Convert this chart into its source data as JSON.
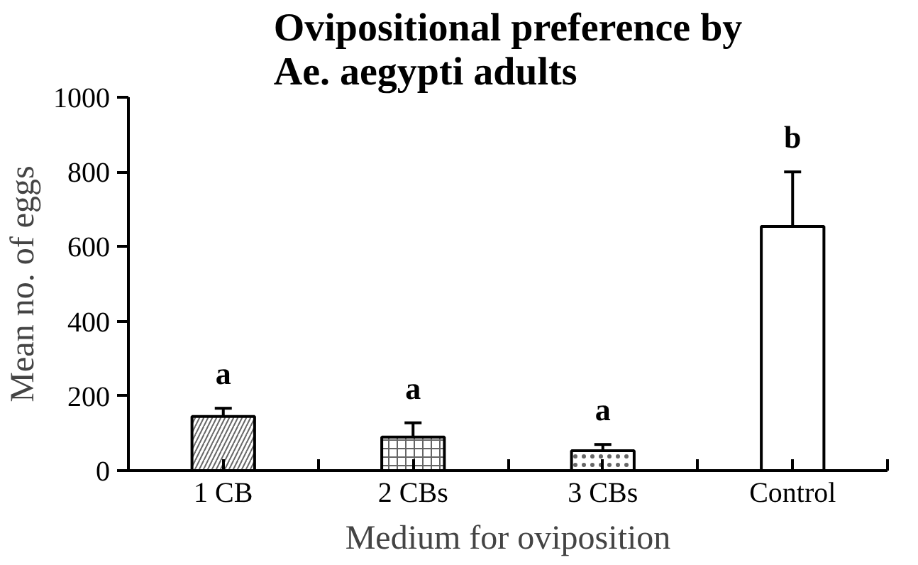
{
  "chart_data": {
    "type": "bar",
    "title": "Ovipositional preference by Ae. aegypti adults",
    "xlabel": "Medium for oviposition",
    "ylabel": "Mean no. of eggs",
    "categories": [
      "1 CB",
      "2 CBs",
      "3 CBs",
      "Control"
    ],
    "values": [
      145,
      90,
      53,
      654
    ],
    "errors": [
      22,
      38,
      17,
      146
    ],
    "color": "#ffffff",
    "ylim": [
      0,
      1000
    ],
    "yticks": [
      0,
      200,
      400,
      600,
      800,
      1000
    ],
    "grid": false,
    "annotations": [
      "a",
      "a",
      "a",
      "b"
    ]
  }
}
